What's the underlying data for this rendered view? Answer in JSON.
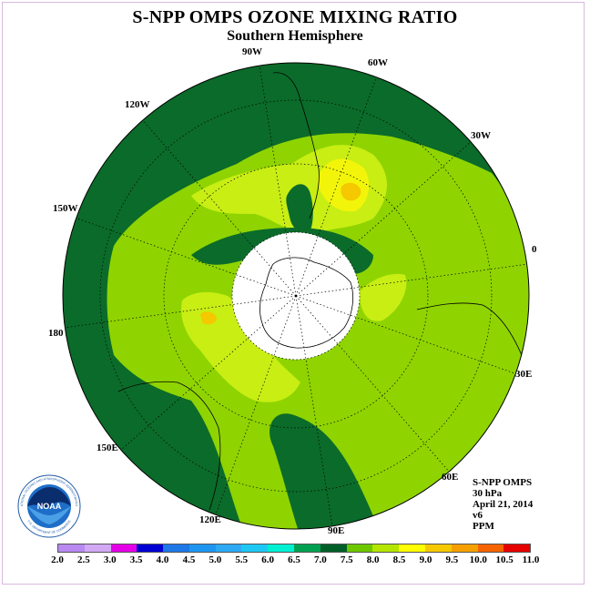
{
  "title": "S-NPP OMPS OZONE MIXING RATIO",
  "subtitle": "Southern Hemisphere",
  "longitude_labels": [
    "90W",
    "60W",
    "30W",
    "0",
    "30E",
    "60E",
    "90E",
    "120E",
    "150E",
    "180",
    "150W",
    "120W"
  ],
  "info": {
    "line1": "S-NPP OMPS",
    "line2": "30 hPa",
    "line3": "April 21, 2014",
    "line4": "v6",
    "line5": "PPM"
  },
  "colorbar": {
    "ticks": [
      "2.0",
      "2.5",
      "3.0",
      "3.5",
      "4.0",
      "4.5",
      "5.0",
      "5.5",
      "6.0",
      "6.5",
      "7.0",
      "7.5",
      "8.0",
      "8.5",
      "9.0",
      "9.5",
      "10.0",
      "10.5",
      "11.0"
    ],
    "colors": [
      "#b889f0",
      "#d3a9f5",
      "#e600e6",
      "#0000d2",
      "#1e78e6",
      "#1e96f0",
      "#2eaaf5",
      "#1ec8f5",
      "#00f0d2",
      "#00a050",
      "#005f28",
      "#6ec800",
      "#b4e600",
      "#ffff00",
      "#f5c800",
      "#f5a000",
      "#f56400",
      "#e60000",
      "#8b5a3c"
    ]
  },
  "logo": {
    "text": "NOAA",
    "ring_text": "NATIONAL OCEANIC AND ATMOSPHERIC ADMINISTRATION",
    "bottom_text": "U.S. DEPARTMENT OF COMMERCE"
  },
  "colors": {
    "dark_green": "#0b6b2a",
    "mid_green": "#8fd400",
    "light_green": "#b8e600",
    "yellow_green": "#dcf532",
    "yellow": "#ffff00",
    "orange": "#f5c800",
    "pole": "#ffffff"
  }
}
